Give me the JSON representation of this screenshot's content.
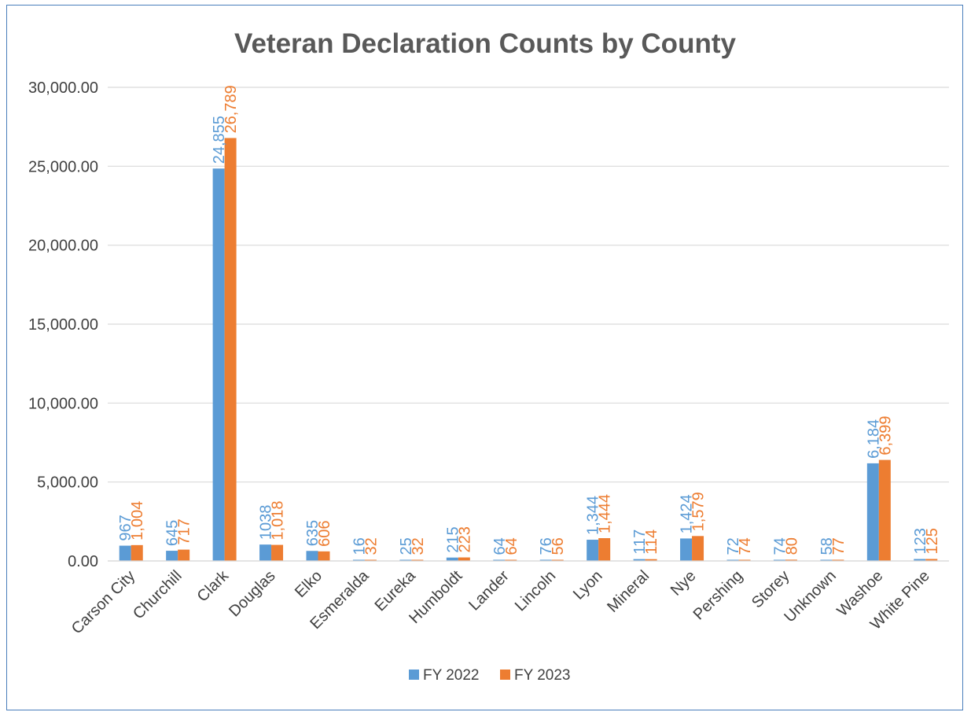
{
  "chart_data": {
    "type": "bar",
    "title": "Veteran Declaration Counts by County",
    "xlabel": "",
    "ylabel": "",
    "ylim": [
      0,
      30000
    ],
    "yticks": [
      0,
      5000,
      10000,
      15000,
      20000,
      25000,
      30000
    ],
    "ytick_labels": [
      "0.00",
      "5,000.00",
      "10,000.00",
      "15,000.00",
      "20,000.00",
      "25,000.00",
      "30,000.00"
    ],
    "grid": true,
    "legend_position": "bottom",
    "categories": [
      "Carson City",
      "Churchill",
      "Clark",
      "Douglas",
      "Elko",
      "Esmeralda",
      "Eureka",
      "Humboldt",
      "Lander",
      "Lincoln",
      "Lyon",
      "Mineral",
      "Nye",
      "Pershing",
      "Storey",
      "Unknown",
      "Washoe",
      "White Pine"
    ],
    "series": [
      {
        "name": "FY 2022",
        "color": "#5b9bd5",
        "values": [
          967,
          645,
          24855,
          1038,
          635,
          16,
          25,
          215,
          64,
          76,
          1344,
          117,
          1424,
          72,
          74,
          58,
          6184,
          123
        ],
        "labels": [
          "967",
          "645",
          "24,855",
          "1038",
          "635",
          "16",
          "25",
          "215",
          "64",
          "76",
          "1,344",
          "117",
          "1,424",
          "72",
          "74",
          "58",
          "6,184",
          "123"
        ]
      },
      {
        "name": "FY 2023",
        "color": "#ed7d31",
        "values": [
          1004,
          717,
          26789,
          1018,
          606,
          32,
          32,
          223,
          64,
          56,
          1444,
          114,
          1579,
          74,
          80,
          77,
          6399,
          125
        ],
        "labels": [
          "1,004",
          "717",
          "26,789",
          "1,018",
          "606",
          "32",
          "32",
          "223",
          "64",
          "56",
          "1,444",
          "114",
          "1,579",
          "74",
          "80",
          "77",
          "6,399",
          "125"
        ]
      }
    ]
  }
}
